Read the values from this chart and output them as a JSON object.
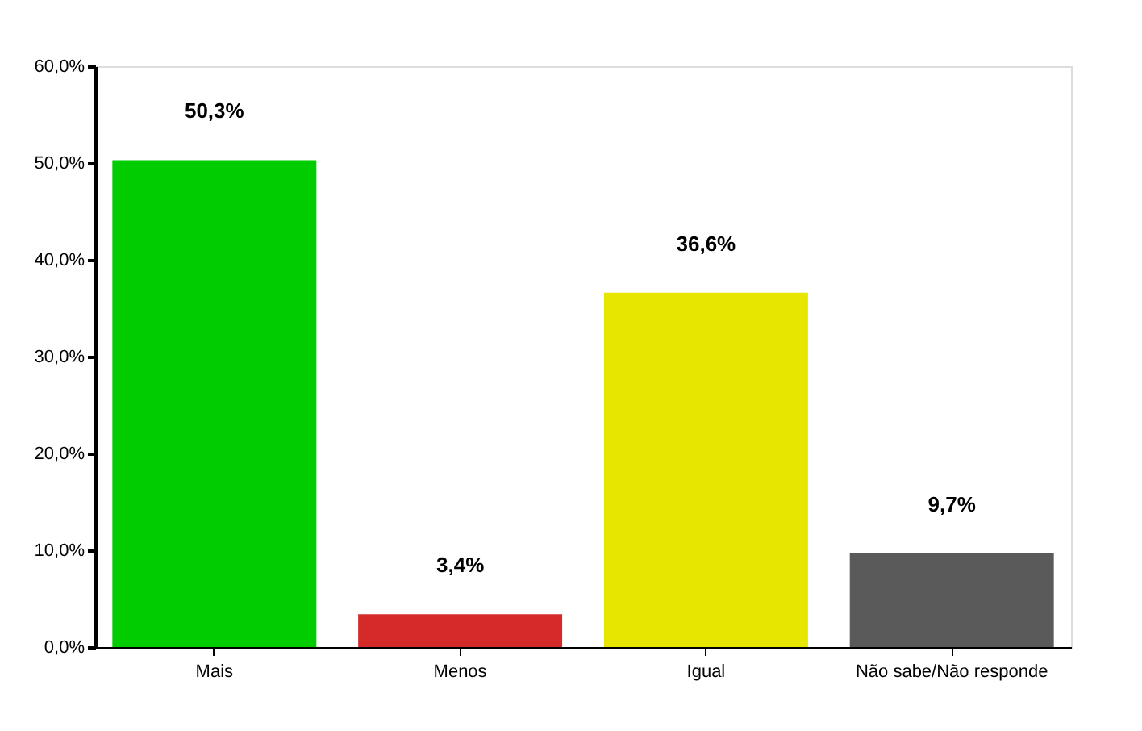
{
  "chart_data": {
    "type": "bar",
    "categories": [
      "Mais",
      "Menos",
      "Igual",
      "Não sabe/Não responde"
    ],
    "values": [
      50.3,
      3.4,
      36.6,
      9.7
    ],
    "colors": [
      "#00cc00",
      "#d42a2a",
      "#e6e600",
      "#5a5a5a"
    ],
    "value_labels": [
      "50,3%",
      "3,4%",
      "36,6%",
      "9,7%"
    ],
    "ylim": [
      0,
      60
    ],
    "yticks": [
      {
        "value": 0,
        "label": "0,0%"
      },
      {
        "value": 10,
        "label": "10,0%"
      },
      {
        "value": 20,
        "label": "20,0%"
      },
      {
        "value": 30,
        "label": "30,0%"
      },
      {
        "value": 40,
        "label": "40,0%"
      },
      {
        "value": 50,
        "label": "50,0%"
      },
      {
        "value": 60,
        "label": "60,0%"
      }
    ],
    "grid": false
  }
}
